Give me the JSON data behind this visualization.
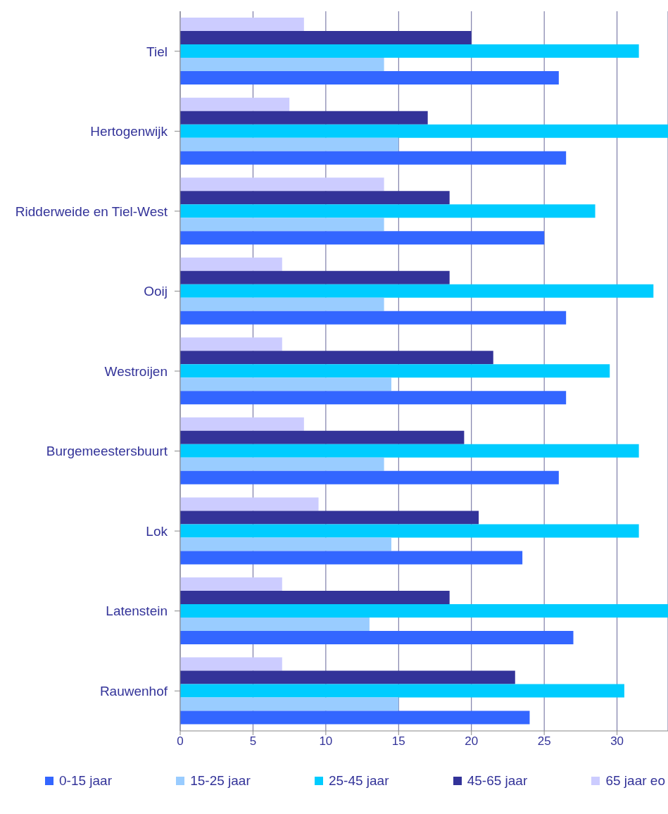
{
  "chart_data": {
    "type": "bar",
    "orientation": "horizontal",
    "categories": [
      "Tiel",
      "Hertogenwijk",
      "Ridderweide en Tiel-West",
      "Ooij",
      "Westroijen",
      "Burgemeestersbuurt",
      "Lok",
      "Latenstein",
      "Rauwenhof"
    ],
    "series": [
      {
        "name": "0-15 jaar",
        "color": "#3366ff",
        "values": [
          26,
          26.5,
          25,
          26.5,
          26.5,
          26,
          23.5,
          27,
          24
        ]
      },
      {
        "name": "15-25 jaar",
        "color": "#99ccff",
        "values": [
          14,
          15,
          14,
          14,
          14.5,
          14,
          14.5,
          13,
          15
        ]
      },
      {
        "name": "25-45 jaar",
        "color": "#00ccff",
        "values": [
          31.5,
          33.5,
          28.5,
          32.5,
          29.5,
          31.5,
          31.5,
          33.5,
          30.5
        ]
      },
      {
        "name": "45-65 jaar",
        "color": "#333399",
        "values": [
          20,
          17,
          18.5,
          18.5,
          21.5,
          19.5,
          20.5,
          18.5,
          23
        ]
      },
      {
        "name": "65 jaar eo",
        "color": "#ccccff",
        "values": [
          8.5,
          7.5,
          14,
          7,
          7,
          8.5,
          9.5,
          7,
          7
        ]
      }
    ],
    "xlim": [
      0,
      33.5
    ],
    "xticks": [
      0,
      5,
      10,
      15,
      20,
      25,
      30
    ],
    "grid": "x",
    "legend": "bottom"
  }
}
